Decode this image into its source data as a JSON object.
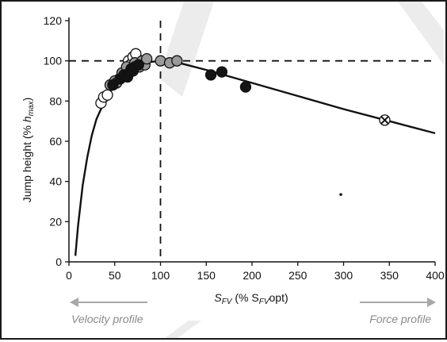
{
  "chart_data": {
    "type": "scatter",
    "ylabel": {
      "main": "Jump height (% ",
      "var": "h",
      "sub": "max",
      "close": ")"
    },
    "xlabel": {
      "main": "S",
      "sub": "FV",
      "mid": " (% S",
      "sub2": "FV",
      "end": "opt)"
    },
    "xlim": [
      0,
      400
    ],
    "ylim": [
      0,
      120
    ],
    "xticks": [
      0,
      50,
      100,
      150,
      200,
      250,
      300,
      350,
      400
    ],
    "yticks": [
      0,
      20,
      40,
      60,
      80,
      100,
      120
    ],
    "grid": false,
    "reference_lines": {
      "x": 100,
      "y": 100
    },
    "curve": {
      "x": [
        7,
        10,
        15,
        20,
        25,
        30,
        40,
        50,
        60,
        70,
        80,
        90,
        100,
        110,
        120,
        150,
        200,
        250,
        300,
        350,
        400
      ],
      "y": [
        3,
        18,
        38,
        52,
        63,
        71,
        81,
        88,
        93,
        96,
        98,
        99.5,
        100,
        99.8,
        99,
        95.5,
        89,
        82.5,
        76,
        70,
        64
      ]
    },
    "series": [
      {
        "style": "white",
        "x": [
          35,
          38,
          42,
          55,
          62,
          65,
          67,
          70,
          73
        ],
        "y": [
          79,
          82,
          83,
          91,
          95,
          100,
          98,
          102,
          103.5
        ]
      },
      {
        "style": "gray",
        "x": [
          45,
          50,
          52,
          58,
          63,
          68,
          72,
          77,
          80,
          83,
          85,
          100,
          110,
          118
        ],
        "y": [
          88,
          90,
          89,
          94,
          97,
          96,
          99,
          97,
          100,
          98,
          101,
          100,
          99,
          100
        ]
      },
      {
        "style": "black",
        "x": [
          48,
          56,
          60,
          64,
          66,
          68,
          70,
          72,
          76,
          155,
          167,
          193
        ],
        "y": [
          88,
          91,
          93,
          92,
          94,
          96,
          95,
          97,
          98,
          93,
          94.5,
          87
        ]
      },
      {
        "style": "cross",
        "x": [
          345
        ],
        "y": [
          70.5
        ]
      },
      {
        "style": "dot",
        "x": [
          297
        ],
        "y": [
          33.5
        ]
      }
    ],
    "annotations": {
      "left": "Velocity profile",
      "right": "Force profile"
    }
  }
}
